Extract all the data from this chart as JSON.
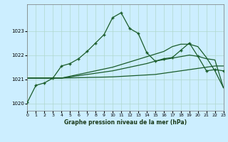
{
  "title": "Graphe pression niveau de la mer (hPa)",
  "background_color": "#cceeff",
  "plot_bg_color": "#cceeff",
  "grid_color": "#b0d8cc",
  "line_color": "#1a5c2a",
  "xlim": [
    0,
    23
  ],
  "ylim": [
    1019.7,
    1024.1
  ],
  "yticks": [
    1020,
    1021,
    1022,
    1023
  ],
  "xticks": [
    0,
    1,
    2,
    3,
    4,
    5,
    6,
    7,
    8,
    9,
    10,
    11,
    12,
    13,
    14,
    15,
    16,
    17,
    18,
    19,
    20,
    21,
    22,
    23
  ],
  "series1_x": [
    0,
    1,
    2,
    3,
    4,
    5,
    6,
    7,
    8,
    9,
    10,
    11,
    12,
    13,
    14,
    15,
    16,
    17,
    18,
    19,
    20,
    21,
    22,
    23
  ],
  "series1_y": [
    1020.05,
    1020.75,
    1020.85,
    1021.05,
    1021.55,
    1021.65,
    1021.85,
    1022.15,
    1022.5,
    1022.85,
    1023.55,
    1023.75,
    1023.1,
    1022.9,
    1022.1,
    1021.75,
    1021.85,
    1021.9,
    1022.2,
    1022.5,
    1021.95,
    1021.35,
    1021.4,
    1021.35
  ],
  "series2_x": [
    0,
    3,
    4,
    10,
    15,
    16,
    19,
    22,
    23
  ],
  "series2_y": [
    1021.05,
    1021.05,
    1021.05,
    1021.1,
    1021.2,
    1021.25,
    1021.4,
    1021.55,
    1021.55
  ],
  "series3_x": [
    0,
    3,
    4,
    10,
    14,
    15,
    19,
    20,
    21,
    22,
    23
  ],
  "series3_y": [
    1021.05,
    1021.05,
    1021.05,
    1021.35,
    1021.65,
    1021.75,
    1022.0,
    1021.95,
    1021.85,
    1021.8,
    1020.65
  ],
  "series4_x": [
    0,
    3,
    4,
    10,
    16,
    17,
    18,
    19,
    20,
    21,
    22,
    23
  ],
  "series4_y": [
    1021.05,
    1021.05,
    1021.05,
    1021.5,
    1022.15,
    1022.35,
    1022.45,
    1022.45,
    1022.35,
    1021.9,
    1021.35,
    1020.65
  ]
}
